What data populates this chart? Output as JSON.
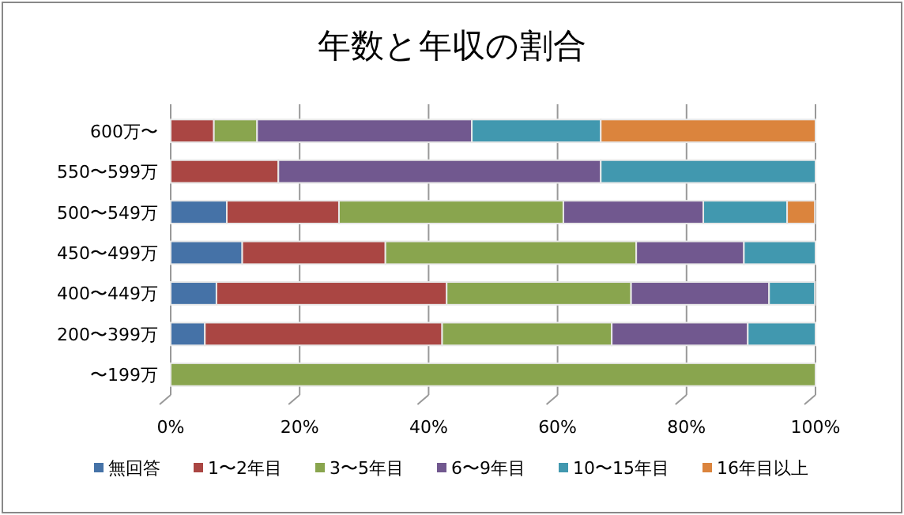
{
  "chart_data": {
    "type": "bar",
    "orientation": "horizontal",
    "stacked": true,
    "title": "年数と年収の割合",
    "categories": [
      "600万〜",
      "550〜599万",
      "500〜549万",
      "450〜499万",
      "400〜449万",
      "200〜399万",
      "〜199万"
    ],
    "series": [
      {
        "name": "無回答",
        "color": "#4572a7",
        "values": [
          0,
          0,
          8.7,
          11.1,
          7.1,
          5.3,
          0
        ]
      },
      {
        "name": "1〜2年目",
        "color": "#aa4643",
        "values": [
          6.7,
          16.7,
          17.4,
          22.2,
          35.7,
          36.8,
          0
        ]
      },
      {
        "name": "3〜5年目",
        "color": "#89a54e",
        "values": [
          6.7,
          0,
          34.8,
          38.9,
          28.6,
          26.3,
          100
        ]
      },
      {
        "name": "6〜9年目",
        "color": "#71588f",
        "values": [
          33.3,
          50,
          21.7,
          16.7,
          21.4,
          21.1,
          0
        ]
      },
      {
        "name": "10〜15年目",
        "color": "#4198af",
        "values": [
          20,
          33.3,
          13,
          11.1,
          7.1,
          10.5,
          0
        ]
      },
      {
        "name": "16年目以上",
        "color": "#db843d",
        "values": [
          33.3,
          0,
          4.3,
          0,
          0,
          0,
          0
        ]
      }
    ],
    "xlim": [
      0,
      100
    ],
    "xticks": [
      {
        "value": 0,
        "label": "0%"
      },
      {
        "value": 20,
        "label": "20%"
      },
      {
        "value": 40,
        "label": "40%"
      },
      {
        "value": 60,
        "label": "60%"
      },
      {
        "value": 80,
        "label": "80%"
      },
      {
        "value": 100,
        "label": "100%"
      }
    ],
    "grid": "x",
    "legend": "bottom"
  }
}
